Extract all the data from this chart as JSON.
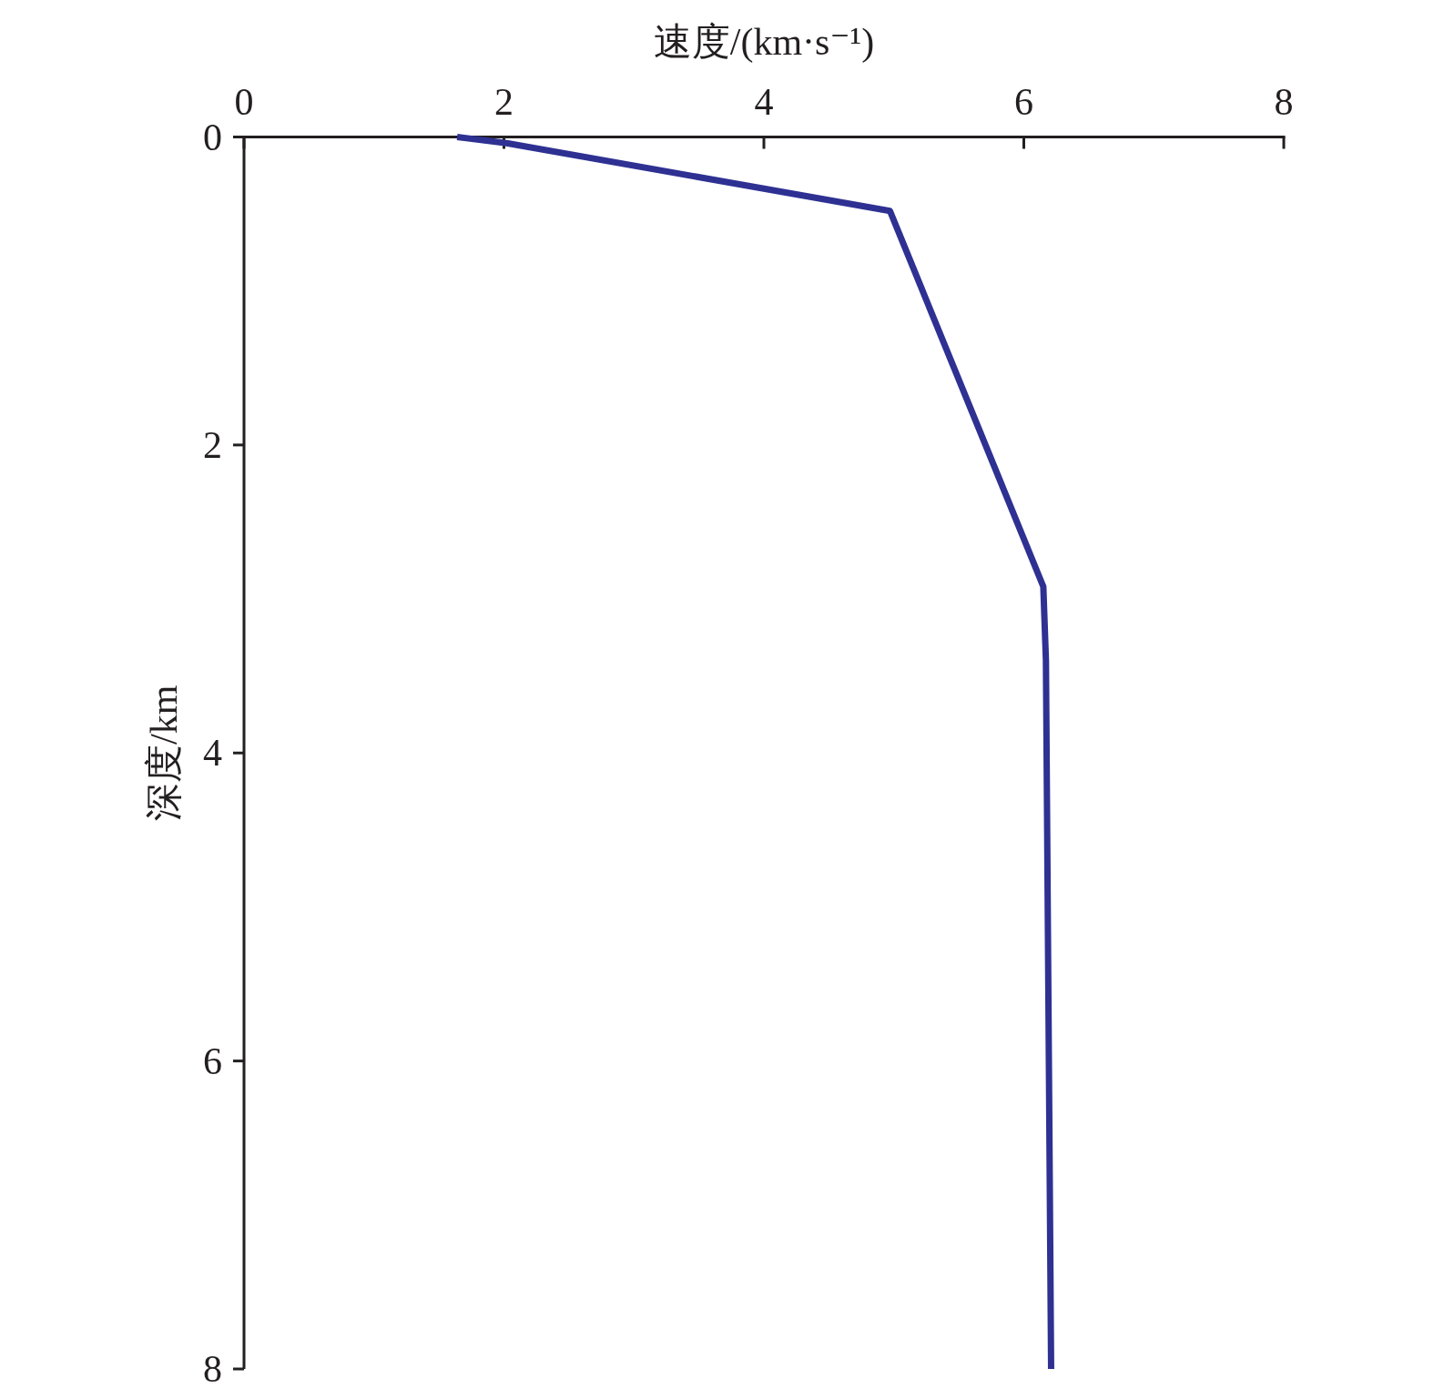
{
  "chart_data": {
    "type": "line",
    "xlabel": "速度/(km·s⁻¹)",
    "ylabel": "深度/km",
    "x": [
      1.64,
      2.02,
      4.97,
      6.15,
      6.17,
      6.21
    ],
    "values": [
      0,
      0.04,
      0.48,
      2.92,
      3.4,
      8
    ],
    "color": "#2e3192",
    "xlim": [
      0,
      8
    ],
    "xticks": [
      0,
      2,
      4,
      6,
      8
    ],
    "ylim": [
      8,
      0
    ],
    "yticks": [
      0,
      2,
      4,
      6,
      8
    ]
  }
}
